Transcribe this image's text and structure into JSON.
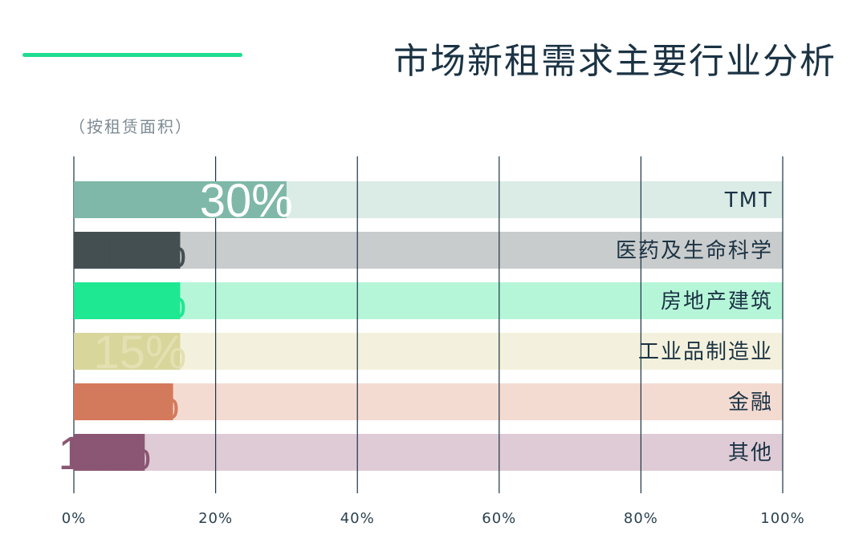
{
  "header": {
    "title": "市场新租需求主要行业分析",
    "subtitle": "（按租赁面积）",
    "accent_color": "#1fdc91"
  },
  "chart_data": {
    "type": "bar",
    "orientation": "horizontal",
    "stacked_to_100": true,
    "categories": [
      "TMT",
      "医药及生命科学",
      "房地产建筑",
      "工业品制造业",
      "金融",
      "其他"
    ],
    "values": [
      30,
      15,
      15,
      15,
      14,
      10
    ],
    "value_labels": [
      "30%",
      "15%",
      "15%",
      "15%",
      "14%",
      "10%"
    ],
    "xlim": [
      0,
      100
    ],
    "xticks": [
      "0%",
      "20%",
      "40%",
      "60%",
      "80%",
      "100%"
    ],
    "grid": true,
    "colors": {
      "bars": [
        "#7fb8a8",
        "#444f52",
        "#1ee891",
        "#d9d69b",
        "#d47a5c",
        "#8b5673"
      ],
      "tracks": [
        "#dbebe6",
        "#c9cccc",
        "#b6f6d8",
        "#f3f1dd",
        "#f4dbd2",
        "#decbd6"
      ],
      "value_text": [
        "#ffffff",
        "#444f52",
        "#1ee891",
        "#e3e0b2",
        "#d47a5c",
        "#8b5673"
      ],
      "grid": "#1b3344",
      "axis_text": "#2a4150",
      "category_text": "#1b3344"
    }
  }
}
